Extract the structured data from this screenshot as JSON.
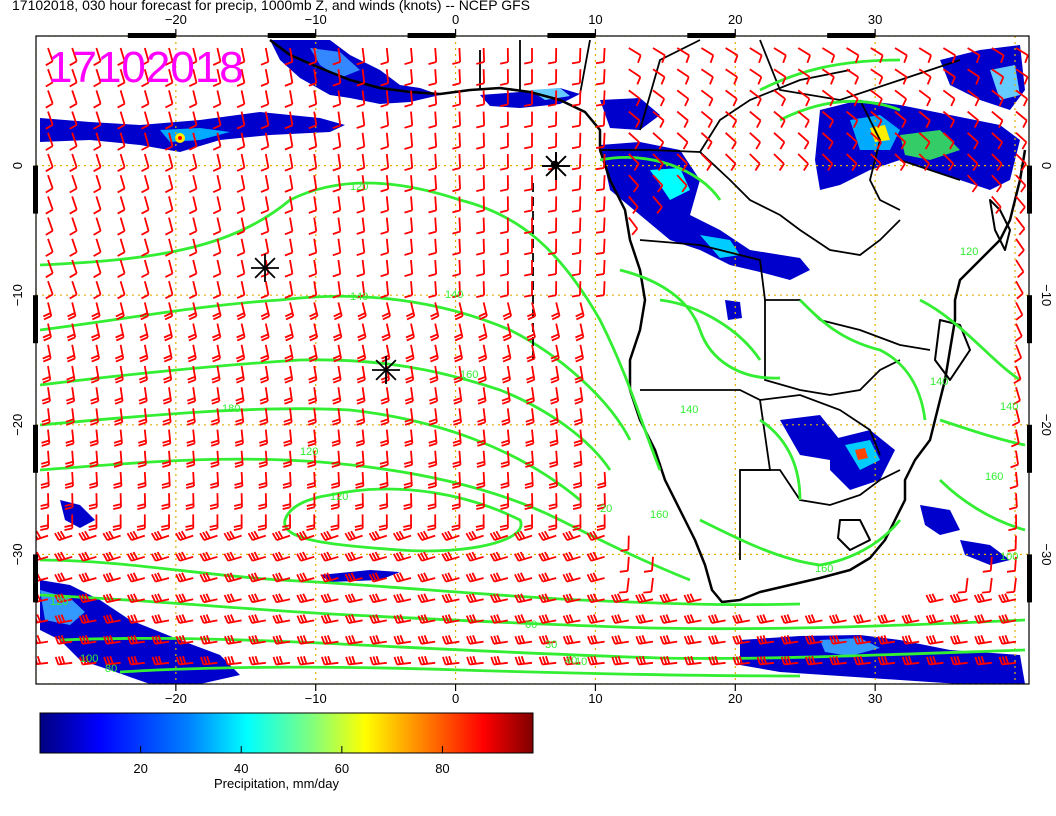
{
  "title": "17102018, 030 hour forecast for precip, 1000mb Z, and winds (knots) -- NCEP GFS",
  "stamp": "17102018",
  "map": {
    "lon_range": [
      -30,
      41
    ],
    "lat_range": [
      -40,
      10
    ],
    "lon_ticks": [
      -20,
      -10,
      0,
      10,
      20,
      30
    ],
    "lon_tick_labels": [
      "−20",
      "−10",
      "0",
      "10",
      "20",
      "30"
    ],
    "lat_ticks": [
      0,
      -10,
      -20,
      -30
    ],
    "lat_tick_labels": [
      "0",
      "−10",
      "−20",
      "−30"
    ],
    "grid_interval_deg": 10,
    "colors": {
      "wind_barbs": "#ff0000",
      "height_contours": "#33ee33",
      "coastlines": "#000000",
      "gridlines": "#e0b000",
      "stamp": "#ff00ff"
    },
    "contour_labels": [
      "120",
      "140",
      "140",
      "160",
      "180",
      "120",
      "120",
      "20",
      "160",
      "140",
      "120",
      "100",
      "80",
      "60",
      "30",
      "40",
      "10",
      "160",
      "120",
      "140",
      "160",
      "100",
      "140"
    ],
    "markers": [
      "asterisk",
      "asterisk",
      "asterisk",
      "asterisk"
    ]
  },
  "colorbar": {
    "ticks": [
      "20",
      "40",
      "60",
      "80"
    ],
    "label": "Precipitation, mm/day",
    "colors": [
      "#00007f",
      "#0000ff",
      "#007fff",
      "#00ffff",
      "#7fff7f",
      "#ffff00",
      "#ff7f00",
      "#ff0000",
      "#7f0000"
    ]
  }
}
